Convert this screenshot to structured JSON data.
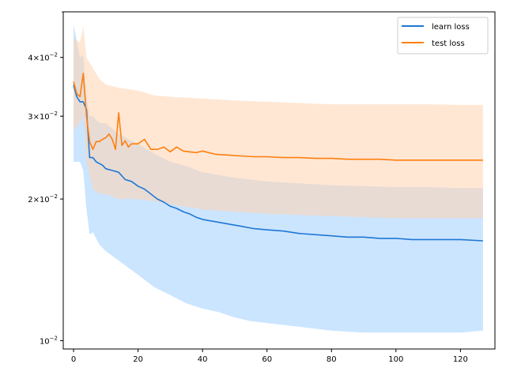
{
  "chart_data": {
    "type": "line",
    "title": "",
    "xlabel": "",
    "ylabel": "",
    "xlim": [
      -3.2,
      130.7
    ],
    "ylim": [
      0.0096,
      0.05
    ],
    "yscale": "log",
    "grid": false,
    "legend_position": "top-right",
    "x_ticks": [
      0,
      20,
      40,
      60,
      80,
      100,
      120
    ],
    "x_tick_labels": [
      "0",
      "20",
      "40",
      "60",
      "80",
      "100",
      "120"
    ],
    "y_ticks": [
      0.01,
      0.02,
      0.03,
      0.04
    ],
    "y_tick_labels": [
      {
        "base": "10",
        "exp": "−2",
        "coef": ""
      },
      {
        "base": "10",
        "exp": "−2",
        "coef": "2×"
      },
      {
        "base": "10",
        "exp": "−2",
        "coef": "3×"
      },
      {
        "base": "10",
        "exp": "−2",
        "coef": "4×"
      }
    ],
    "series": [
      {
        "name": "learn loss",
        "color": "#1f77d4",
        "band_color": "#a8d4ff",
        "points": [
          [
            0,
            0.035
          ],
          [
            1,
            0.033
          ],
          [
            2,
            0.0322
          ],
          [
            3,
            0.0322
          ],
          [
            4,
            0.031
          ],
          [
            5,
            0.0245
          ],
          [
            6,
            0.0245
          ],
          [
            7,
            0.024
          ],
          [
            8,
            0.0238
          ],
          [
            9,
            0.0236
          ],
          [
            10,
            0.0232
          ],
          [
            12,
            0.023
          ],
          [
            14,
            0.0228
          ],
          [
            16,
            0.022
          ],
          [
            18,
            0.0218
          ],
          [
            20,
            0.0213
          ],
          [
            22,
            0.021
          ],
          [
            24,
            0.0205
          ],
          [
            26,
            0.02
          ],
          [
            28,
            0.0197
          ],
          [
            30,
            0.0193
          ],
          [
            32,
            0.0191
          ],
          [
            34,
            0.0188
          ],
          [
            36,
            0.0186
          ],
          [
            38,
            0.0183
          ],
          [
            40,
            0.0181
          ],
          [
            44,
            0.0179
          ],
          [
            48,
            0.0177
          ],
          [
            52,
            0.0175
          ],
          [
            56,
            0.0173
          ],
          [
            60,
            0.0172
          ],
          [
            65,
            0.0171
          ],
          [
            70,
            0.0169
          ],
          [
            75,
            0.0168
          ],
          [
            80,
            0.0167
          ],
          [
            85,
            0.0166
          ],
          [
            90,
            0.0166
          ],
          [
            95,
            0.0165
          ],
          [
            100,
            0.0165
          ],
          [
            105,
            0.0164
          ],
          [
            110,
            0.0164
          ],
          [
            115,
            0.0164
          ],
          [
            120,
            0.0164
          ],
          [
            127,
            0.0163
          ]
        ],
        "band": [
          [
            0,
            0.024,
            0.047
          ],
          [
            2,
            0.024,
            0.04
          ],
          [
            3,
            0.023,
            0.0405
          ],
          [
            4,
            0.019,
            0.033
          ],
          [
            5,
            0.0168,
            0.03
          ],
          [
            6,
            0.017,
            0.03
          ],
          [
            8,
            0.016,
            0.029
          ],
          [
            10,
            0.0155,
            0.029
          ],
          [
            14,
            0.0148,
            0.0275
          ],
          [
            20,
            0.0138,
            0.0262
          ],
          [
            25,
            0.013,
            0.025
          ],
          [
            30,
            0.0125,
            0.024
          ],
          [
            35,
            0.012,
            0.0235
          ],
          [
            40,
            0.0117,
            0.0228
          ],
          [
            45,
            0.0115,
            0.0225
          ],
          [
            50,
            0.0112,
            0.0222
          ],
          [
            55,
            0.011,
            0.022
          ],
          [
            60,
            0.0109,
            0.0218
          ],
          [
            70,
            0.0107,
            0.0216
          ],
          [
            80,
            0.0105,
            0.0214
          ],
          [
            90,
            0.0104,
            0.0213
          ],
          [
            100,
            0.0104,
            0.0212
          ],
          [
            110,
            0.0104,
            0.0212
          ],
          [
            120,
            0.0104,
            0.0211
          ],
          [
            127,
            0.0105,
            0.0211
          ]
        ]
      },
      {
        "name": "test loss",
        "color": "#ff7f0e",
        "band_color": "#ffd4b0",
        "points": [
          [
            0,
            0.0355
          ],
          [
            1,
            0.0335
          ],
          [
            2,
            0.033
          ],
          [
            3,
            0.037
          ],
          [
            4,
            0.03
          ],
          [
            5,
            0.0265
          ],
          [
            6,
            0.0255
          ],
          [
            7,
            0.0265
          ],
          [
            8,
            0.0265
          ],
          [
            9,
            0.0268
          ],
          [
            10,
            0.027
          ],
          [
            11,
            0.0275
          ],
          [
            12,
            0.0268
          ],
          [
            13,
            0.0255
          ],
          [
            14,
            0.0305
          ],
          [
            15,
            0.026
          ],
          [
            16,
            0.0266
          ],
          [
            17,
            0.0258
          ],
          [
            18,
            0.0262
          ],
          [
            20,
            0.0262
          ],
          [
            22,
            0.0268
          ],
          [
            24,
            0.0255
          ],
          [
            26,
            0.0255
          ],
          [
            28,
            0.0258
          ],
          [
            30,
            0.0252
          ],
          [
            32,
            0.0258
          ],
          [
            34,
            0.0253
          ],
          [
            36,
            0.0252
          ],
          [
            38,
            0.0251
          ],
          [
            40,
            0.0253
          ],
          [
            44,
            0.0249
          ],
          [
            48,
            0.0248
          ],
          [
            52,
            0.0247
          ],
          [
            56,
            0.0246
          ],
          [
            60,
            0.0246
          ],
          [
            65,
            0.0245
          ],
          [
            70,
            0.0245
          ],
          [
            75,
            0.0244
          ],
          [
            80,
            0.0244
          ],
          [
            85,
            0.0243
          ],
          [
            90,
            0.0243
          ],
          [
            95,
            0.0243
          ],
          [
            100,
            0.0242
          ],
          [
            105,
            0.0242
          ],
          [
            110,
            0.0242
          ],
          [
            115,
            0.0242
          ],
          [
            120,
            0.0242
          ],
          [
            127,
            0.0242
          ]
        ],
        "band": [
          [
            0,
            0.028,
            0.044
          ],
          [
            2,
            0.029,
            0.043
          ],
          [
            3,
            0.03,
            0.0465
          ],
          [
            4,
            0.024,
            0.04
          ],
          [
            6,
            0.021,
            0.038
          ],
          [
            8,
            0.0205,
            0.036
          ],
          [
            10,
            0.0205,
            0.035
          ],
          [
            14,
            0.02,
            0.0345
          ],
          [
            20,
            0.02,
            0.034
          ],
          [
            25,
            0.0198,
            0.0332
          ],
          [
            30,
            0.0195,
            0.033
          ],
          [
            40,
            0.019,
            0.0327
          ],
          [
            50,
            0.0188,
            0.0324
          ],
          [
            60,
            0.0186,
            0.0322
          ],
          [
            70,
            0.0185,
            0.032
          ],
          [
            80,
            0.0184,
            0.0318
          ],
          [
            90,
            0.0183,
            0.0318
          ],
          [
            100,
            0.0182,
            0.0318
          ],
          [
            110,
            0.0182,
            0.0318
          ],
          [
            120,
            0.0182,
            0.0317
          ],
          [
            127,
            0.0182,
            0.0317
          ]
        ]
      }
    ]
  }
}
